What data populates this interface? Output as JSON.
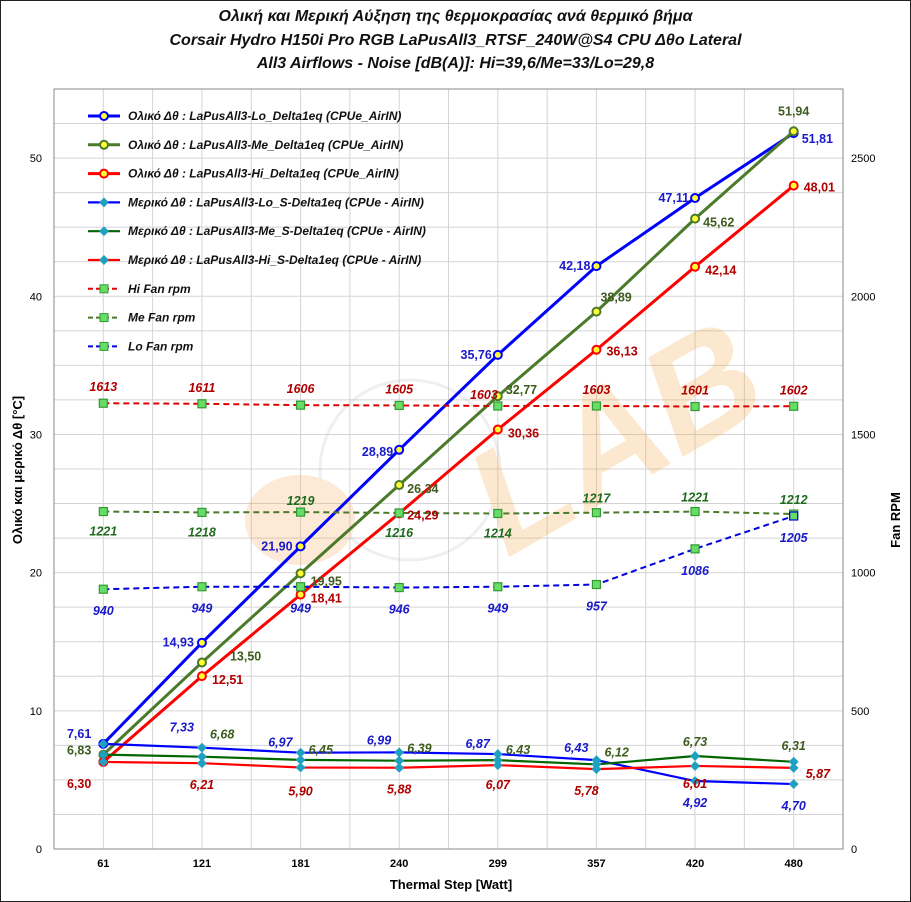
{
  "chart_data": {
    "type": "line",
    "title": [
      "Ολική και Μερική Αύξηση της θερμοκρασίας ανά θερμικό βήμα",
      "Corsair Hydro H150i Pro RGB  LaPusAll3_RTSF_240W@S4  CPU  Δθο Lateral",
      "All3  Airflows  -  Noise [dB(A)]: Hi=39,6/Me=33/Lo=29,8"
    ],
    "xlabel": "Thermal Step [Watt]",
    "ylabel": "Ολικό και μερικό  Δθ  [°C]",
    "y2label": "Fan RPM",
    "categories": [
      "61",
      "121",
      "181",
      "240",
      "299",
      "357",
      "420",
      "480"
    ],
    "ylim": [
      0,
      55
    ],
    "y_ticks": [
      0,
      10,
      20,
      30,
      40,
      50
    ],
    "y2lim": [
      0,
      2750
    ],
    "y2_ticks": [
      0,
      500,
      1000,
      1500,
      2000,
      2500
    ],
    "grid": true,
    "legend_position": "top-left",
    "watermark": "LAB.gr",
    "series": [
      {
        "name": "Ολικό Δθ : LaPusAll3-Lo_Delta1eq (CPUe_AirIN)",
        "axis": "left",
        "style": "total",
        "color": "#0000ff",
        "labelColor": "#1a1acc",
        "values": [
          7.61,
          14.93,
          21.9,
          28.89,
          35.76,
          42.18,
          47.11,
          51.81
        ],
        "labels": [
          "7,61",
          "14,93",
          "21,90",
          "28,89",
          "35,76",
          "42,18",
          "47,11",
          "51,81"
        ]
      },
      {
        "name": "Ολικό Δθ : LaPusAll3-Me_Delta1eq (CPUe_AirIN)",
        "axis": "left",
        "style": "total",
        "color": "#4a7a2a",
        "labelColor": "#3d5c1e",
        "values": [
          6.83,
          13.5,
          19.95,
          26.34,
          32.77,
          38.89,
          45.62,
          51.94
        ],
        "labels": [
          "6,83",
          "13,50",
          "19,95",
          "26,34",
          "32,77",
          "38,89",
          "45,62",
          "51,94"
        ]
      },
      {
        "name": "Ολικό Δθ : LaPusAll3-Hi_Delta1eq (CPUe_AirIN)",
        "axis": "left",
        "style": "total",
        "color": "#ff0000",
        "labelColor": "#b00000",
        "values": [
          6.3,
          12.51,
          18.41,
          24.29,
          30.36,
          36.13,
          42.14,
          48.01
        ],
        "labels": [
          "6,30",
          "12,51",
          "18,41",
          "24,29",
          "30,36",
          "36,13",
          "42,14",
          "48,01"
        ]
      },
      {
        "name": "Μερικό Δθ : LaPusAll3-Lo_S-Delta1eq (CPUe - AirIN)",
        "axis": "left",
        "style": "partial",
        "color": "#0000ff",
        "labelColor": "#1a1acc",
        "values": [
          7.61,
          7.33,
          6.97,
          6.99,
          6.87,
          6.43,
          4.92,
          4.7
        ],
        "labels": [
          "",
          "7,33",
          "6,97",
          "6,99",
          "6,87",
          "6,43",
          "4,92",
          "4,70"
        ]
      },
      {
        "name": "Μερικό Δθ : LaPusAll3-Me_S-Delta1eq (CPUe - AirIN)",
        "axis": "left",
        "style": "partial",
        "color": "#006600",
        "labelColor": "#3d5c1e",
        "values": [
          6.83,
          6.68,
          6.45,
          6.39,
          6.43,
          6.12,
          6.73,
          6.31
        ],
        "labels": [
          "",
          "6,68",
          "6,45",
          "6,39",
          "6,43",
          "6,12",
          "6,73",
          "6,31"
        ]
      },
      {
        "name": "Μερικό Δθ : LaPusAll3-Hi_S-Delta1eq (CPUe - AirIN)",
        "axis": "left",
        "style": "partial",
        "color": "#ff0000",
        "labelColor": "#b00000",
        "values": [
          6.3,
          6.21,
          5.9,
          5.88,
          6.07,
          5.78,
          6.01,
          5.87
        ],
        "labels": [
          "",
          "6,21",
          "5,90",
          "5,88",
          "6,07",
          "5,78",
          "6,01",
          "5,87"
        ]
      },
      {
        "name": "Hi Fan rpm",
        "axis": "right",
        "style": "fan",
        "color": "#dd0000",
        "labelColor": "#b00000",
        "values": [
          1613,
          1611,
          1606,
          1605,
          1603,
          1603,
          1601,
          1602
        ],
        "labels": [
          "1613",
          "1611",
          "1606",
          "1605",
          "1603",
          "1603",
          "1601",
          "1602"
        ]
      },
      {
        "name": "Me Fan rpm",
        "axis": "right",
        "style": "fan",
        "color": "#4a7a2a",
        "labelColor": "#1f6b1f",
        "values": [
          1221,
          1218,
          1219,
          1216,
          1214,
          1217,
          1221,
          1212
        ],
        "labels": [
          "1221",
          "1218",
          "1219",
          "1216",
          "1214",
          "1217",
          "1221",
          "1212"
        ]
      },
      {
        "name": "Lo Fan rpm",
        "axis": "right",
        "style": "fan",
        "color": "#0000dd",
        "labelColor": "#1a1acc",
        "values": [
          940,
          949,
          949,
          946,
          949,
          957,
          1086,
          1205
        ],
        "labels": [
          "940",
          "949",
          "949",
          "946",
          "949",
          "957",
          "1086",
          "1205"
        ]
      }
    ]
  }
}
